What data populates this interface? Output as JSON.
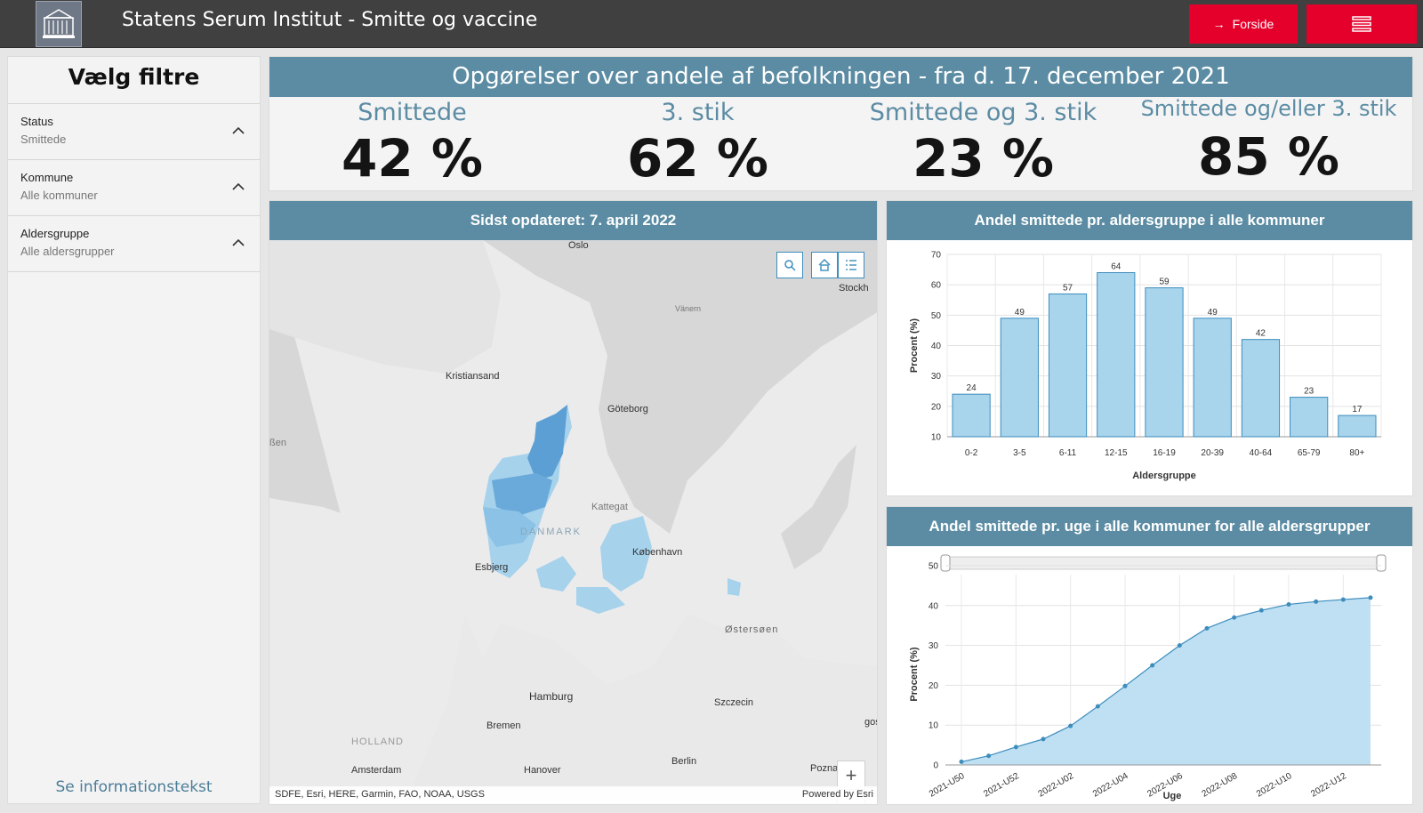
{
  "header": {
    "title": "Statens Serum Institut - Smitte og vaccine",
    "forside_label": "Forside"
  },
  "sidebar": {
    "title": "Vælg filtre",
    "filters": [
      {
        "label": "Status",
        "value": "Smittede"
      },
      {
        "label": "Kommune",
        "value": "Alle kommuner"
      },
      {
        "label": "Aldersgruppe",
        "value": "Alle aldersgrupper"
      }
    ],
    "info_link": "Se informationstekst"
  },
  "summary": {
    "title": "Opgørelser over andele af befolkningen - fra d. 17. december 2021",
    "stats": [
      {
        "label": "Smittede",
        "value": "42 %"
      },
      {
        "label": "3. stik",
        "value": "62 %"
      },
      {
        "label": "Smittede og 3. stik",
        "value": "23 %"
      },
      {
        "label": "Smittede og/eller 3. stik",
        "value": "85 %"
      }
    ]
  },
  "map": {
    "title": "Sidst opdateret: 7. april 2022",
    "labels": [
      "Oslo",
      "Stockh",
      "Vänern",
      "Kristiansand",
      "Göteborg",
      "ßen",
      "Kattegat",
      "DANMARK",
      "København",
      "Esbjerg",
      "Østersøen",
      "Hamburg",
      "Szczecin",
      "Bremen",
      "HOLLAND",
      "Amsterdam",
      "Hanover",
      "Berlin",
      "Poznan",
      "gos"
    ],
    "attribution": "SDFE, Esri, HERE, Garmin, FAO, NOAA, USGS",
    "powered_by": "Powered by Esri",
    "tools": [
      "search-icon",
      "home-icon",
      "list-icon"
    ],
    "zoom_in": "+",
    "zoom_out": "—"
  },
  "chart_data": [
    {
      "type": "bar",
      "title": "Andel smittede pr. aldersgruppe i alle kommuner",
      "xlabel": "Aldersgruppe",
      "ylabel": "Procent (%)",
      "categories": [
        "0-2",
        "3-5",
        "6-11",
        "12-15",
        "16-19",
        "20-39",
        "40-64",
        "65-79",
        "80+"
      ],
      "values": [
        24,
        49,
        57,
        64,
        59,
        49,
        42,
        23,
        17
      ],
      "ylim": [
        10,
        70
      ],
      "yticks": [
        10,
        20,
        30,
        40,
        50,
        60,
        70
      ],
      "grid": true
    },
    {
      "type": "area",
      "title": "Andel smittede pr. uge i alle kommuner for alle aldersgrupper",
      "xlabel": "Uge",
      "ylabel": "Procent (%)",
      "x": [
        "2021-U50",
        "2021-U51",
        "2021-U52",
        "2022-U01",
        "2022-U02",
        "2022-U03",
        "2022-U04",
        "2022-U05",
        "2022-U06",
        "2022-U07",
        "2022-U08",
        "2022-U09",
        "2022-U10",
        "2022-U11",
        "2022-U12",
        "2022-U13"
      ],
      "xtick_labels": [
        "2021-U50",
        "2021-U52",
        "2022-U02",
        "2022-U04",
        "2022-U06",
        "2022-U08",
        "2022-U10",
        "2022-U12"
      ],
      "values": [
        0.8,
        2.3,
        4.5,
        6.5,
        9.8,
        14.7,
        19.8,
        25,
        30,
        34.3,
        37,
        38.8,
        40.3,
        41,
        41.5,
        42
      ],
      "ylim": [
        0,
        50
      ],
      "yticks": [
        0,
        10,
        20,
        30,
        40,
        50
      ],
      "grid": true
    }
  ],
  "colors": {
    "header_bg": "#404040",
    "accent_red": "#e4002b",
    "panel_header": "#5b8ca3",
    "bar_fill": "#a8d4ec",
    "bar_stroke": "#3d8dbd",
    "area_fill": "#bfe0f2"
  }
}
